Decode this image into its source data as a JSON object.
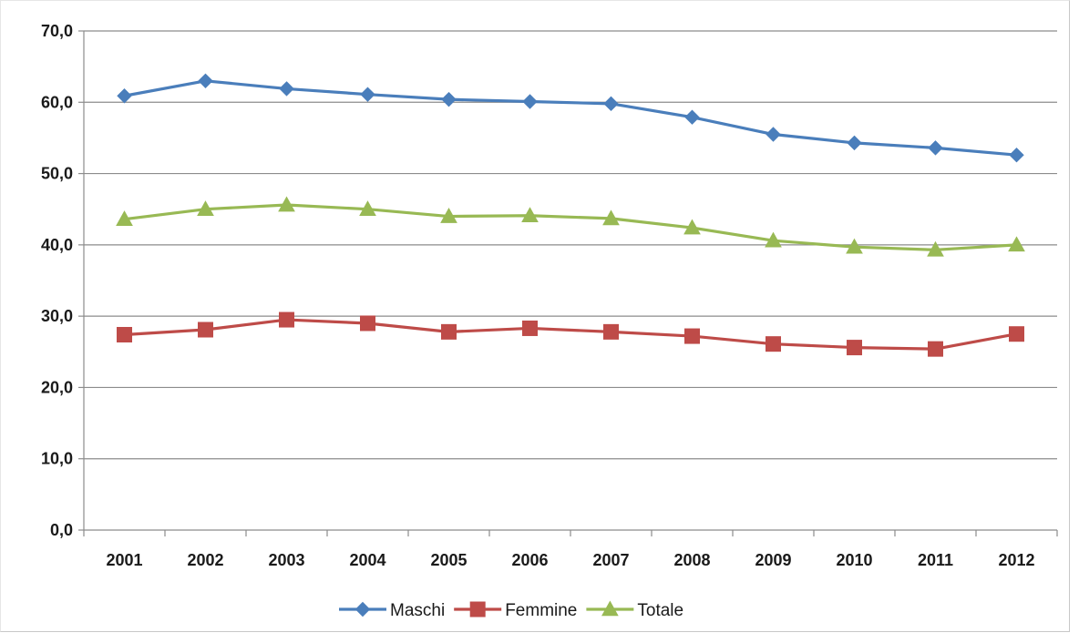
{
  "chart_data": {
    "type": "line",
    "title": "",
    "xlabel": "",
    "ylabel": "",
    "categories": [
      "2001",
      "2002",
      "2003",
      "2004",
      "2005",
      "2006",
      "2007",
      "2008",
      "2009",
      "2010",
      "2011",
      "2012"
    ],
    "ylim": [
      0,
      70
    ],
    "yticks": [
      "0,0",
      "10,0",
      "20,0",
      "30,0",
      "40,0",
      "50,0",
      "60,0",
      "70,0"
    ],
    "grid": true,
    "legend_position": "bottom",
    "series": [
      {
        "name": "Maschi",
        "color": "#4a7ebb",
        "marker": "diamond",
        "values": [
          60.9,
          63.0,
          61.9,
          61.1,
          60.4,
          60.1,
          59.8,
          57.9,
          55.5,
          54.3,
          53.6,
          52.6
        ]
      },
      {
        "name": "Femmine",
        "color": "#be4b48",
        "marker": "square",
        "values": [
          27.4,
          28.1,
          29.5,
          29.0,
          27.8,
          28.3,
          27.8,
          27.2,
          26.1,
          25.6,
          25.4,
          27.5
        ]
      },
      {
        "name": "Totale",
        "color": "#98b954",
        "marker": "triangle",
        "values": [
          43.6,
          45.0,
          45.6,
          45.0,
          44.0,
          44.1,
          43.7,
          42.4,
          40.6,
          39.7,
          39.3,
          40.0
        ]
      }
    ]
  }
}
